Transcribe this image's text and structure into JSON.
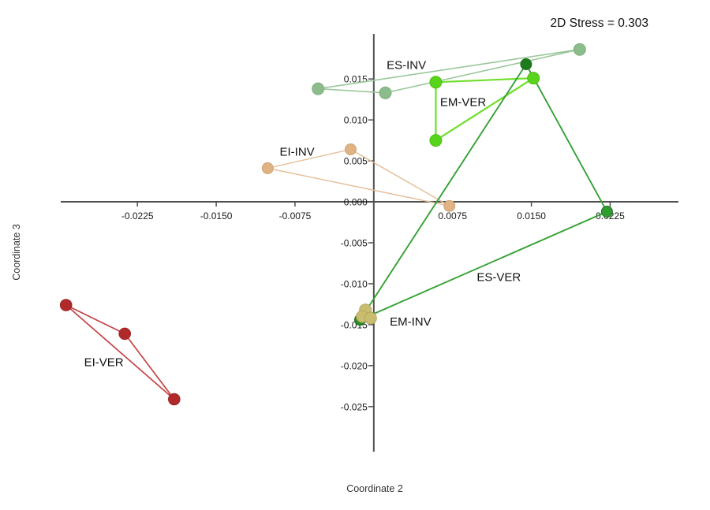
{
  "chart_data": {
    "type": "scatter",
    "title": "2D Stress = 0.303",
    "xlabel": "Coordinate 2",
    "ylabel": "Coordinate 3",
    "x_range": [
      -0.0298,
      0.029
    ],
    "y_range": [
      -0.0305,
      0.0205
    ],
    "grid": false,
    "legend_position": "none",
    "axes": {
      "axis_color": "#4f4f4f",
      "tick_color": "#4f4f4f",
      "x_ticks": [
        {
          "v": -0.0225,
          "label": "-0.0225"
        },
        {
          "v": -0.015,
          "label": "-0.0150"
        },
        {
          "v": -0.0075,
          "label": "-0.0075"
        },
        {
          "v": 0.0075,
          "label": "0.0075"
        },
        {
          "v": 0.015,
          "label": "0.0150"
        },
        {
          "v": 0.0225,
          "label": "0.0225"
        }
      ],
      "y_ticks": [
        {
          "v": 0.015,
          "label": "0.015"
        },
        {
          "v": 0.01,
          "label": "0.010"
        },
        {
          "v": 0.005,
          "label": "0.005"
        },
        {
          "v": 0.0,
          "label": "0.000"
        },
        {
          "v": -0.005,
          "label": "-0.005"
        },
        {
          "v": -0.01,
          "label": "-0.010"
        },
        {
          "v": -0.015,
          "label": "-0.015"
        },
        {
          "v": -0.02,
          "label": "-0.020"
        },
        {
          "v": -0.025,
          "label": "-0.025"
        }
      ]
    },
    "series": [
      {
        "name": "ES-INV",
        "color": "#8cbc8c",
        "line_color": "#9bc79b",
        "line_width": 1.6,
        "point_stroke": "#7fae7f",
        "radius": 7.5,
        "points": [
          [
            -0.0053,
            0.0138
          ],
          [
            0.0011,
            0.0133
          ],
          [
            0.0196,
            0.0186
          ]
        ],
        "label": {
          "text": "ES-INV",
          "x": 0.0031,
          "y": 0.0167
        }
      },
      {
        "name": "EI-INV",
        "color": "#dfb384",
        "line_color": "#e3bd95",
        "line_width": 1.4,
        "point_stroke": "#cfa271",
        "radius": 7.0,
        "points": [
          [
            -0.0022,
            0.0064
          ],
          [
            -0.0101,
            0.0041
          ],
          [
            0.0072,
            -0.0005
          ]
        ],
        "label": {
          "text": "EI-INV",
          "x": -0.0073,
          "y": 0.0061
        }
      },
      {
        "name": "EM-VER",
        "color": "#59d41d",
        "line_color": "#6ede2a",
        "line_width": 2.2,
        "point_stroke": "#49bd10",
        "radius": 7.5,
        "points": [
          [
            0.0059,
            0.0146
          ],
          [
            0.0059,
            0.0075
          ],
          [
            0.0152,
            0.0151
          ]
        ],
        "label": {
          "text": "EM-VER",
          "x": 0.0085,
          "y": 0.0122
        }
      },
      {
        "name": "ES-VER",
        "color": "#2e9b2e",
        "line_color": "#35a135",
        "line_width": 1.9,
        "point_stroke": "#1c6e1c",
        "radius": 7.0,
        "points": [
          [
            0.0145,
            0.0168
          ],
          [
            0.0222,
            -0.0012
          ],
          [
            -0.0013,
            -0.0144
          ]
        ],
        "point_colors": [
          "#1d7a1d",
          "#2f9e2f",
          "#2a8c2a"
        ],
        "label": {
          "text": "ES-VER",
          "x": 0.0119,
          "y": -0.0092
        }
      },
      {
        "name": "EM-INV",
        "color": "#c9bd70",
        "line_color": "#c9bd70",
        "line_width": 1.0,
        "point_stroke": "#b3a65a",
        "radius": 7.5,
        "points": [
          [
            -0.0008,
            -0.0132
          ],
          [
            -0.0011,
            -0.014
          ],
          [
            -0.0003,
            -0.0142
          ]
        ],
        "label": {
          "text": "EM-INV",
          "x": 0.0035,
          "y": -0.0146
        }
      },
      {
        "name": "EI-VER",
        "color": "#b12a2a",
        "line_color": "#c24444",
        "line_width": 1.7,
        "point_stroke": "#9c2222",
        "radius": 7.3,
        "points": [
          [
            -0.0293,
            -0.0126
          ],
          [
            -0.0237,
            -0.0161
          ],
          [
            -0.019,
            -0.0241
          ]
        ],
        "label": {
          "text": "EI-VER",
          "x": -0.0257,
          "y": -0.0196
        }
      }
    ]
  }
}
